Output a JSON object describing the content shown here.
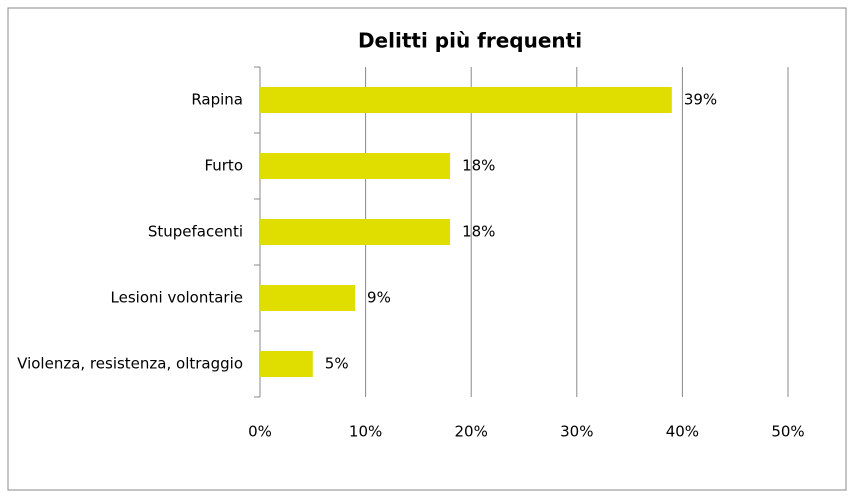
{
  "chart_data": {
    "type": "bar",
    "orientation": "horizontal",
    "title": "Delitti più frequenti",
    "categories": [
      "Rapina",
      "Furto",
      "Stupefacenti",
      "Lesioni volontarie",
      "Violenza, resistenza, oltraggio"
    ],
    "values": [
      39,
      18,
      18,
      9,
      5
    ],
    "value_labels": [
      "39%",
      "18%",
      "18%",
      "9%",
      "5%"
    ],
    "color": "#e0de00",
    "xlim": [
      0,
      50
    ],
    "xticks": [
      {
        "value": 0,
        "label": "0%"
      },
      {
        "value": 10,
        "label": "10%"
      },
      {
        "value": 20,
        "label": "20%"
      },
      {
        "value": 30,
        "label": "30%"
      },
      {
        "value": 40,
        "label": "40%"
      },
      {
        "value": 50,
        "label": "50%"
      }
    ],
    "grid": true
  }
}
